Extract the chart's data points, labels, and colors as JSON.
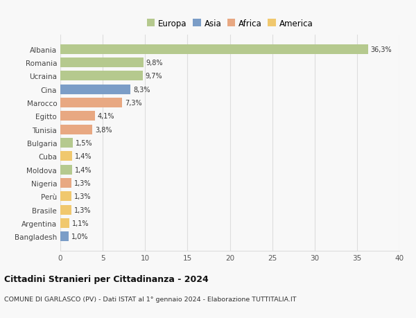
{
  "countries": [
    "Albania",
    "Romania",
    "Ucraina",
    "Cina",
    "Marocco",
    "Egitto",
    "Tunisia",
    "Bulgaria",
    "Cuba",
    "Moldova",
    "Nigeria",
    "Perù",
    "Brasile",
    "Argentina",
    "Bangladesh"
  ],
  "values": [
    36.3,
    9.8,
    9.7,
    8.3,
    7.3,
    4.1,
    3.8,
    1.5,
    1.4,
    1.4,
    1.3,
    1.3,
    1.3,
    1.1,
    1.0
  ],
  "labels": [
    "36,3%",
    "9,8%",
    "9,7%",
    "8,3%",
    "7,3%",
    "4,1%",
    "3,8%",
    "1,5%",
    "1,4%",
    "1,4%",
    "1,3%",
    "1,3%",
    "1,3%",
    "1,1%",
    "1,0%"
  ],
  "colors": [
    "#b5c98e",
    "#b5c98e",
    "#b5c98e",
    "#7b9dc7",
    "#e8a882",
    "#e8a882",
    "#e8a882",
    "#b5c98e",
    "#f0c86e",
    "#b5c98e",
    "#e8a882",
    "#f0c86e",
    "#f0c86e",
    "#f0c86e",
    "#7b9dc7"
  ],
  "legend_labels": [
    "Europa",
    "Asia",
    "Africa",
    "America"
  ],
  "legend_colors": [
    "#b5c98e",
    "#7b9dc7",
    "#e8a882",
    "#f0c86e"
  ],
  "title": "Cittadini Stranieri per Cittadinanza - 2024",
  "subtitle": "COMUNE DI GARLASCO (PV) - Dati ISTAT al 1° gennaio 2024 - Elaborazione TUTTITALIA.IT",
  "xlim": [
    0,
    40
  ],
  "xticks": [
    0,
    5,
    10,
    15,
    20,
    25,
    30,
    35,
    40
  ],
  "background_color": "#f8f8f8",
  "grid_color": "#dddddd",
  "bar_height": 0.72
}
